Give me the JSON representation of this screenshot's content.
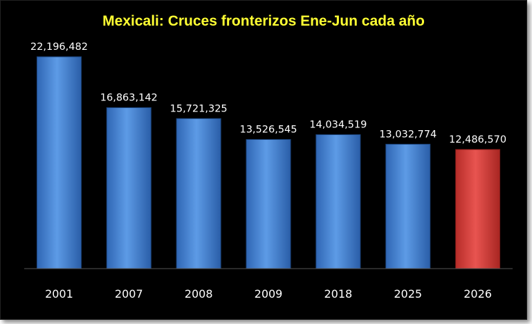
{
  "colors": {
    "background": "#000000",
    "title": "#ffff33",
    "bar": "#3d7fd1",
    "bar_highlight": "#d63b37",
    "axis": "#555555",
    "text": "#ffffff"
  },
  "chart_data": {
    "type": "bar",
    "title": "Mexicali: Cruces fronterizos Ene-Jun cada año",
    "xlabel": "",
    "ylabel": "",
    "categories": [
      "2001",
      "2007",
      "2008",
      "2009",
      "2018",
      "2025",
      "2026"
    ],
    "values": [
      22196482,
      16863142,
      15721325,
      13526545,
      14034519,
      13032774,
      12486570
    ],
    "value_labels": [
      "22,196,482",
      "16,863,142",
      "15,721,325",
      "13,526,545",
      "14,034,519",
      "13,032,774",
      "12,486,570"
    ],
    "highlighted_category": "2026",
    "ylim": [
      0,
      22196482
    ],
    "grid": false,
    "legend": "none"
  }
}
